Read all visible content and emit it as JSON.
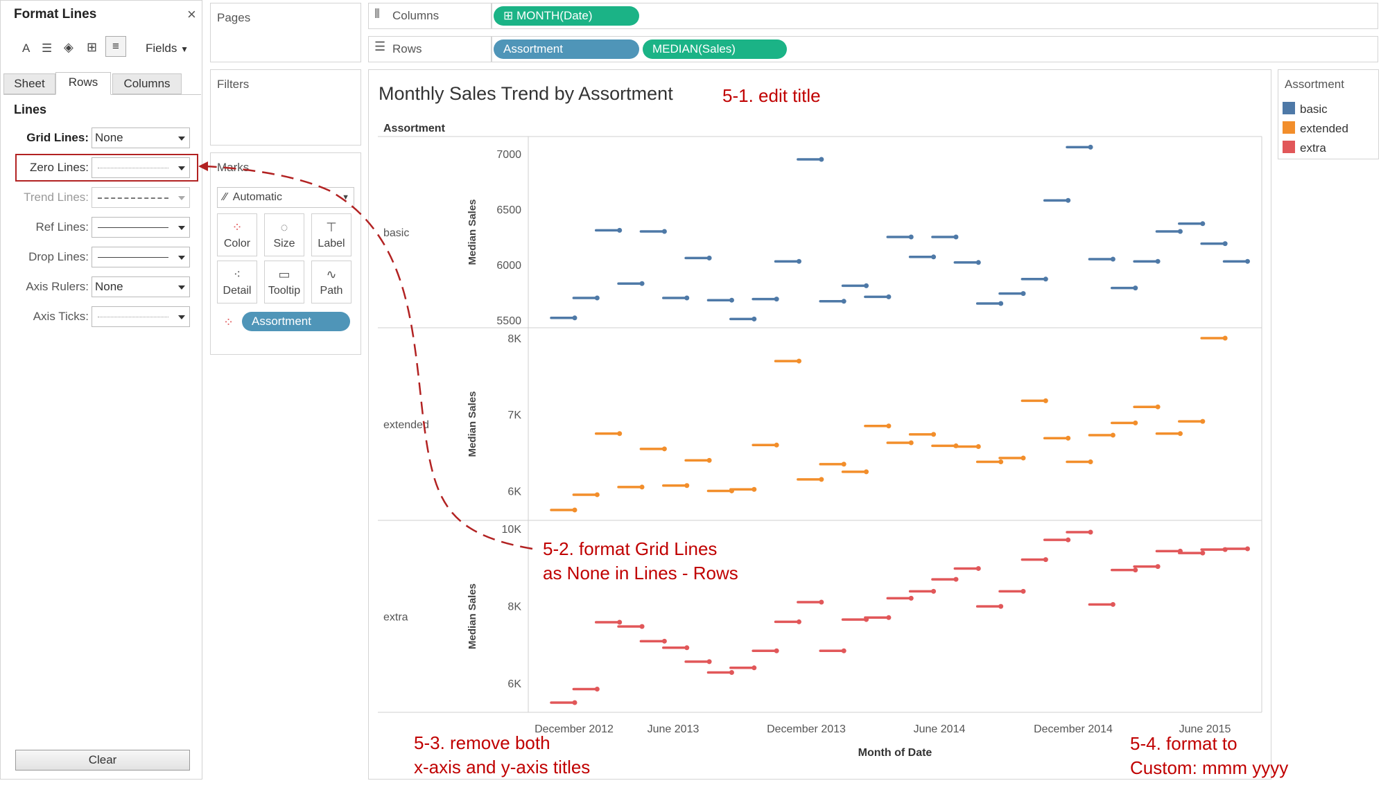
{
  "format_panel": {
    "title": "Format Lines",
    "close": "×",
    "fields_label": "Fields",
    "tabs": [
      "Sheet",
      "Rows",
      "Columns"
    ],
    "section": "Lines",
    "rows": [
      {
        "label": "Grid Lines:",
        "value": "None",
        "style": "text"
      },
      {
        "label": "Zero Lines:",
        "value": "",
        "style": "dotted"
      },
      {
        "label": "Trend Lines:",
        "value": "",
        "style": "dashed"
      },
      {
        "label": "Ref Lines:",
        "value": "",
        "style": "solid"
      },
      {
        "label": "Drop Lines:",
        "value": "",
        "style": "solid"
      },
      {
        "label": "Axis Rulers:",
        "value": "None",
        "style": "text"
      },
      {
        "label": "Axis Ticks:",
        "value": "",
        "style": "dotted"
      }
    ],
    "clear_label": "Clear"
  },
  "shelves": {
    "pages": "Pages",
    "filters": "Filters",
    "marks": "Marks",
    "marks_type": "Automatic",
    "mark_buttons": [
      "Color",
      "Size",
      "Label",
      "Detail",
      "Tooltip",
      "Path"
    ],
    "marks_pill": "Assortment",
    "columns_label": "Columns",
    "rows_label": "Rows",
    "columns_pills": [
      "MONTH(Date)"
    ],
    "rows_pills": [
      "Assortment",
      "MEDIAN(Sales)"
    ]
  },
  "view": {
    "title": "Monthly Sales Trend by Assortment",
    "header": "Assortment",
    "x_title": "Month of Date",
    "x_ticks": [
      "December 2012",
      "June 2013",
      "December 2013",
      "June 2014",
      "December 2014",
      "June 2015"
    ]
  },
  "legend": {
    "title": "Assortment",
    "items": [
      {
        "name": "basic",
        "color": "#4e79a7"
      },
      {
        "name": "extended",
        "color": "#f28e2b"
      },
      {
        "name": "extra",
        "color": "#e15759"
      }
    ]
  },
  "annotations": {
    "a1": "5-1. edit title",
    "a2_line1": "5-2. format Grid Lines",
    "a2_line2": "as None in Lines - Rows",
    "a3_line1": "5-3. remove both",
    "a3_line2": "x-axis and y-axis titles",
    "a4_line1": "5-4. format to",
    "a4_line2": "Custom: mmm yyyy"
  },
  "chart_data": {
    "type": "line",
    "title": "Monthly Sales Trend by Assortment",
    "xlabel": "Month of Date",
    "x_ticks": [
      "December 2012",
      "June 2013",
      "December 2013",
      "June 2014",
      "December 2014",
      "June 2015"
    ],
    "x": [
      "Nov 2012",
      "Dec 2012",
      "Jan 2013",
      "Feb 2013",
      "Mar 2013",
      "Apr 2013",
      "May 2013",
      "Jun 2013",
      "Jul 2013",
      "Aug 2013",
      "Sep 2013",
      "Oct 2013",
      "Nov 2013",
      "Dec 2013",
      "Jan 2014",
      "Feb 2014",
      "Mar 2014",
      "Apr 2014",
      "May 2014",
      "Jun 2014",
      "Jul 2014",
      "Aug 2014",
      "Sep 2014",
      "Oct 2014",
      "Nov 2014",
      "Dec 2014",
      "Jan 2015",
      "Feb 2015",
      "Mar 2015",
      "Apr 2015",
      "May 2015",
      "Jun 2015",
      "Jul 2015"
    ],
    "panes": [
      {
        "name": "basic",
        "ylabel": "Median Sales",
        "ticks": [
          "5500",
          "6000",
          "6500",
          "7000"
        ],
        "ylim": [
          5500,
          7000
        ],
        "values": [
          5520,
          5700,
          6310,
          5830,
          6300,
          5700,
          6060,
          5680,
          5510,
          5690,
          6030,
          6950,
          5670,
          5810,
          5710,
          6250,
          6070,
          6250,
          6020,
          5650,
          5740,
          5870,
          6580,
          7060,
          6050,
          5790,
          6030,
          6300,
          6370,
          6190,
          6030,
          null,
          null
        ]
      },
      {
        "name": "extended",
        "ylabel": "Median Sales",
        "ticks": [
          "6K",
          "7K",
          "8K"
        ],
        "ylim": [
          5750,
          8000
        ],
        "values": [
          5750,
          5950,
          6750,
          6050,
          6550,
          6070,
          6400,
          6000,
          6020,
          6600,
          7700,
          6150,
          6350,
          6250,
          6850,
          6630,
          6740,
          6590,
          6580,
          6380,
          6430,
          7180,
          6690,
          6380,
          6730,
          6890,
          7100,
          6750,
          6910,
          8000,
          null,
          null,
          null
        ]
      },
      {
        "name": "extra",
        "ylabel": "Median Sales",
        "ticks": [
          "6K",
          "8K",
          "10K"
        ],
        "ylim": [
          5500,
          10000
        ],
        "values": [
          5500,
          5850,
          7580,
          7470,
          7090,
          6920,
          6560,
          6280,
          6400,
          6840,
          7590,
          8100,
          6840,
          7650,
          7700,
          8200,
          8380,
          8690,
          8970,
          7990,
          8380,
          9200,
          9710,
          9910,
          8040,
          8930,
          9020,
          9420,
          9370,
          9460,
          9480,
          null,
          null
        ]
      }
    ]
  }
}
